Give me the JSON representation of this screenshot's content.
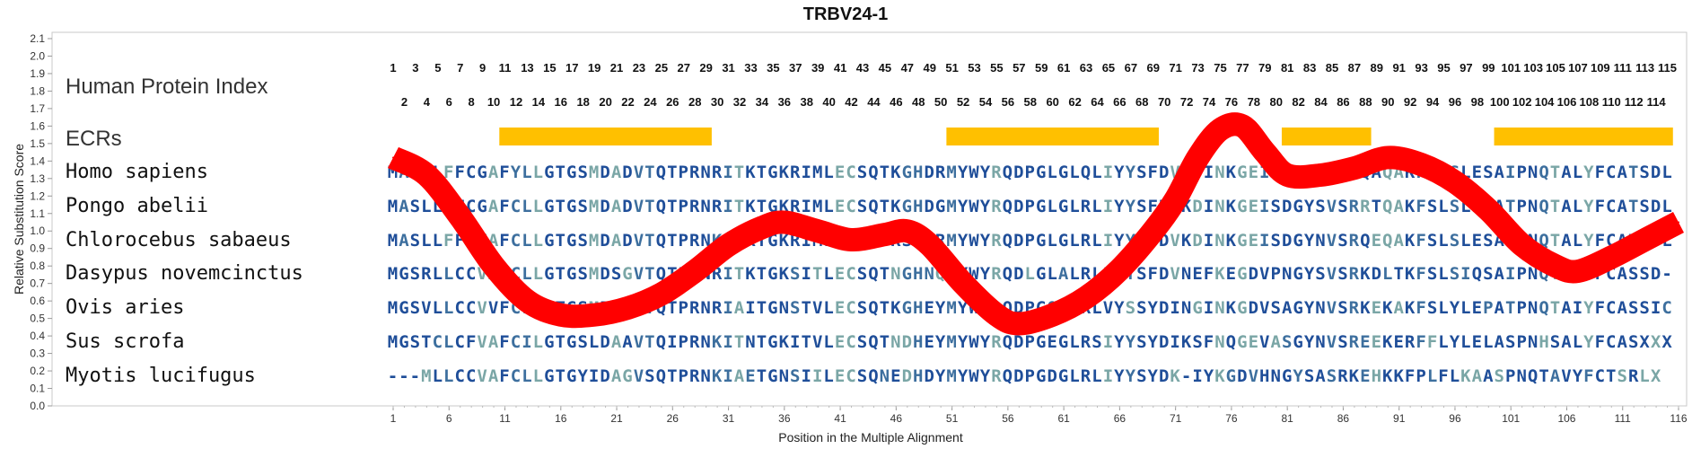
{
  "chart_data": {
    "type": "line",
    "title": "TRBV24-1",
    "xlabel": "Position in the Multiple Alignment",
    "ylabel": "Relative Substitution Score",
    "xlim": [
      1,
      116
    ],
    "ylim": [
      0.0,
      2.1
    ],
    "yticks": [
      "0.0",
      "0.1",
      "0.2",
      "0.3",
      "0.4",
      "0.5",
      "0.6",
      "0.7",
      "0.8",
      "0.9",
      "1.0",
      "1.1",
      "1.2",
      "1.3",
      "1.4",
      "1.5",
      "1.6",
      "1.7",
      "1.8",
      "1.9",
      "2.0",
      "2.1"
    ],
    "xticks": [
      1,
      6,
      11,
      16,
      21,
      26,
      31,
      36,
      41,
      46,
      51,
      56,
      61,
      66,
      71,
      76,
      81,
      86,
      91,
      96,
      101,
      106,
      111,
      116
    ],
    "series": [
      {
        "color": "#ff0000",
        "points": [
          [
            1,
            1.42
          ],
          [
            4,
            1.32
          ],
          [
            7,
            1.08
          ],
          [
            10,
            0.8
          ],
          [
            13,
            0.6
          ],
          [
            16,
            0.52
          ],
          [
            19,
            0.52
          ],
          [
            22,
            0.56
          ],
          [
            25,
            0.64
          ],
          [
            28,
            0.77
          ],
          [
            31,
            0.92
          ],
          [
            34,
            1.02
          ],
          [
            36,
            1.05
          ],
          [
            39,
            1.0
          ],
          [
            42,
            0.95
          ],
          [
            45,
            0.98
          ],
          [
            47,
            1.0
          ],
          [
            49,
            0.92
          ],
          [
            52,
            0.7
          ],
          [
            55,
            0.52
          ],
          [
            57,
            0.47
          ],
          [
            60,
            0.52
          ],
          [
            63,
            0.62
          ],
          [
            66,
            0.78
          ],
          [
            69,
            1.0
          ],
          [
            71,
            1.18
          ],
          [
            73,
            1.42
          ],
          [
            75,
            1.58
          ],
          [
            77,
            1.6
          ],
          [
            79,
            1.45
          ],
          [
            81,
            1.32
          ],
          [
            84,
            1.32
          ],
          [
            87,
            1.36
          ],
          [
            90,
            1.42
          ],
          [
            93,
            1.38
          ],
          [
            96,
            1.28
          ],
          [
            99,
            1.12
          ],
          [
            102,
            0.92
          ],
          [
            105,
            0.8
          ],
          [
            107,
            0.77
          ],
          [
            110,
            0.85
          ],
          [
            113,
            0.95
          ],
          [
            116,
            1.05
          ]
        ]
      }
    ],
    "ecr_label": "ECRs",
    "ecr_color": "#ffc000",
    "ecrs": [
      [
        11,
        29
      ],
      [
        51,
        69
      ],
      [
        81,
        88
      ],
      [
        100,
        115
      ]
    ],
    "index_label": "Human Protein Index",
    "index_top": [
      "1",
      "3",
      "5",
      "7",
      "9",
      "11",
      "13",
      "15",
      "17",
      "19",
      "21",
      "23",
      "25",
      "27",
      "29",
      "31",
      "33",
      "35",
      "37",
      "39",
      "41",
      "43",
      "45",
      "47",
      "49",
      "51",
      "53",
      "55",
      "57",
      "59",
      "61",
      "63",
      "65",
      "67",
      "69",
      "71",
      "73",
      "75",
      "77",
      "79",
      "81",
      "83",
      "85",
      "87",
      "89",
      "91",
      "93",
      "95",
      "97",
      "99",
      "101",
      "103",
      "105",
      "107",
      "109",
      "111",
      "113",
      "115"
    ],
    "index_bottom": [
      "2",
      "4",
      "6",
      "8",
      "10",
      "12",
      "14",
      "16",
      "18",
      "20",
      "22",
      "24",
      "26",
      "28",
      "30",
      "32",
      "34",
      "36",
      "38",
      "40",
      "42",
      "44",
      "46",
      "48",
      "50",
      "52",
      "54",
      "56",
      "58",
      "60",
      "62",
      "64",
      "66",
      "68",
      "70",
      "72",
      "74",
      "76",
      "78",
      "80",
      "82",
      "84",
      "86",
      "88",
      "90",
      "92",
      "94",
      "96",
      "98",
      "100",
      "102",
      "104",
      "106",
      "108",
      "110",
      "112",
      "114"
    ],
    "rows": [
      {
        "name": "Homo sapiens",
        "seq": "MASLLFFCGAFYLLGTGSMDADVTQTPRNRITKTGKRIMLECSQTKGHDRMYWYRQDPGLGLQLIYYSFDVKDINKGEISDGYSVSRQAQAKFSLSLESAIPNQTALYFCATSDL"
      },
      {
        "name": "Pongo abelii",
        "seq": "MASLLFFCGAFCLLGTGSMDADVTQTPRNRITKTGKRIMLECSQTKGHDGMYWYRQDPGLGLRLIYYSFDVKDINKGEISDGYSVSRRTQAKFSLSLESATPNQTALYFCATSDL"
      },
      {
        "name": "Chlorocebus sabaeus",
        "seq": "MASLLFFCVAFCLLGTGSMDADVTQTPRNKIAKTGKRIMLECSQTKSHDRMYWYRQDPGLGLRLIYYSFDVKDINKGEISDGYNVSRQEQAKFSLSLESATPNQTALYFCATSDL"
      },
      {
        "name": "Dasypus novemcinctus",
        "seq": "MGSRLLCCVALCLLGTGSMDSGVTQTPRNRITKTGKSITLECSQTNGHNQMYWYRQDLGLALRLIYYSFDVNEFKEGDVPNGYSVSRKDLTKFSLSIQSAIPNQTSLYFCASSD-"
      },
      {
        "name": "Ovis aries",
        "seq": "MGSVLLCCVVFCLLGTGSMDTGVTQTPRNRIAITGNSTVLECSQTKGHEYMYWYRQDPGQGLRLVYSSYDINGINKGDVSAGYNVSRKEKAKFSLYLEPATPNQTAIYFCASSIC"
      },
      {
        "name": "Sus scrofa",
        "seq": "MGSTCLCFVAFCILGTGSLDAAVTQIPRNKITNTGKITVLECSQTNDHEYMYWYRQDPGEGLRSIYYSYDIKSFNQGEVASGYNVSREEKERFFLYLELASPNHSALYFCASXXX"
      },
      {
        "name": "Myotis lucifugus",
        "seq": "---MLLCCVAFCLLGTGYIDAGVSQTPRNKIAETGNSIILECSQNEDHDYMYWYRQDPGDGLRLIYYSYDK-IYKGDVHNGYSASRKEHKKFPLFLKAASPNQTAVYFCTSRLX"
      }
    ],
    "residue_colors": {
      "strong": "#1f4e99",
      "medium": "#3d6f9e",
      "light": "#7aa6a6"
    }
  }
}
